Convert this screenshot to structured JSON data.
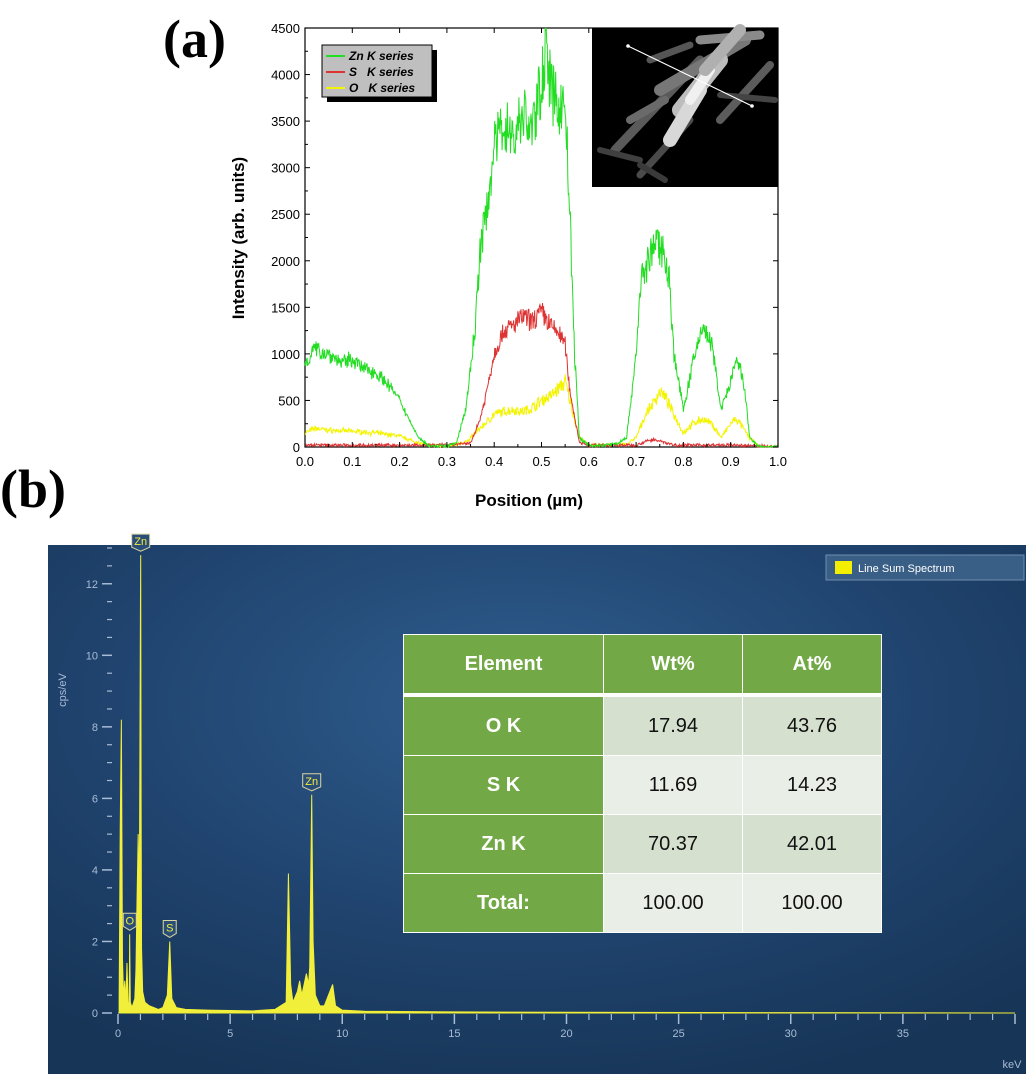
{
  "panel_a_label": "(a)",
  "panel_b_label": "(b)",
  "colors": {
    "zn": "#22dd22",
    "s": "#dd3333",
    "o": "#f4f400",
    "spectrum_bg": "#1f4470",
    "spectrum_line": "#f2ef3a",
    "table_header": "#72a845"
  },
  "chart_data": [
    {
      "type": "line",
      "title": "",
      "xlabel": "Position (µm)",
      "ylabel": "Intensity (arb. units)",
      "xlim": [
        0.0,
        1.0
      ],
      "ylim": [
        0,
        4500
      ],
      "xticks": [
        "0.0",
        "0.1",
        "0.2",
        "0.3",
        "0.4",
        "0.5",
        "0.6",
        "0.7",
        "0.8",
        "0.9",
        "1.0"
      ],
      "yticks": [
        "0",
        "500",
        "1000",
        "1500",
        "2000",
        "2500",
        "3000",
        "3500",
        "4000",
        "4500"
      ],
      "legend_position": "top-left",
      "inset": "grayscale SEM image of nanostructure with scan line",
      "series": [
        {
          "name": "Zn K series",
          "x": [
            0.0,
            0.02,
            0.05,
            0.08,
            0.1,
            0.12,
            0.15,
            0.18,
            0.2,
            0.22,
            0.24,
            0.26,
            0.28,
            0.3,
            0.32,
            0.34,
            0.36,
            0.37,
            0.38,
            0.4,
            0.42,
            0.44,
            0.46,
            0.48,
            0.5,
            0.51,
            0.52,
            0.54,
            0.55,
            0.56,
            0.57,
            0.58,
            0.6,
            0.62,
            0.66,
            0.68,
            0.7,
            0.71,
            0.72,
            0.74,
            0.76,
            0.77,
            0.78,
            0.8,
            0.82,
            0.84,
            0.86,
            0.88,
            0.9,
            0.91,
            0.92,
            0.93,
            0.94,
            0.96,
            1.0
          ],
          "values": [
            900,
            1050,
            1000,
            900,
            950,
            850,
            800,
            650,
            500,
            300,
            100,
            20,
            10,
            10,
            40,
            400,
            1300,
            2100,
            2400,
            3200,
            3500,
            3300,
            3600,
            3400,
            3900,
            4400,
            3800,
            3650,
            3700,
            2500,
            1000,
            100,
            20,
            10,
            40,
            100,
            1000,
            1800,
            1900,
            2200,
            2100,
            1800,
            1000,
            400,
            900,
            1300,
            1100,
            400,
            700,
            900,
            850,
            600,
            100,
            0,
            0
          ]
        },
        {
          "name": "S   K series",
          "x": [
            0.0,
            0.3,
            0.35,
            0.37,
            0.38,
            0.4,
            0.42,
            0.44,
            0.46,
            0.48,
            0.5,
            0.52,
            0.54,
            0.55,
            0.56,
            0.58,
            0.6,
            0.7,
            0.72,
            0.74,
            0.76,
            0.78,
            0.8,
            0.84,
            0.9,
            1.0
          ],
          "values": [
            20,
            20,
            40,
            300,
            500,
            1000,
            1250,
            1300,
            1400,
            1350,
            1450,
            1300,
            1200,
            1100,
            600,
            50,
            20,
            20,
            60,
            80,
            50,
            20,
            20,
            20,
            20,
            0
          ]
        },
        {
          "name": "O   K series",
          "x": [
            0.0,
            0.02,
            0.05,
            0.1,
            0.15,
            0.2,
            0.23,
            0.26,
            0.3,
            0.34,
            0.36,
            0.38,
            0.4,
            0.42,
            0.44,
            0.46,
            0.48,
            0.5,
            0.52,
            0.54,
            0.55,
            0.56,
            0.58,
            0.6,
            0.68,
            0.7,
            0.72,
            0.74,
            0.75,
            0.76,
            0.78,
            0.8,
            0.82,
            0.84,
            0.86,
            0.88,
            0.9,
            0.91,
            0.92,
            0.94,
            0.96,
            1.0
          ],
          "values": [
            150,
            200,
            180,
            170,
            150,
            120,
            60,
            20,
            10,
            50,
            150,
            250,
            350,
            380,
            400,
            380,
            420,
            500,
            550,
            650,
            700,
            500,
            100,
            20,
            30,
            100,
            350,
            500,
            600,
            550,
            350,
            150,
            250,
            300,
            250,
            100,
            250,
            300,
            250,
            100,
            0,
            0
          ]
        }
      ]
    },
    {
      "type": "line",
      "title": "",
      "xlabel": "keV",
      "ylabel": "cps/eV",
      "xlim": [
        0,
        40
      ],
      "ylim": [
        0,
        13
      ],
      "xticks": [
        "0",
        "5",
        "10",
        "15",
        "20",
        "25",
        "30",
        "35"
      ],
      "yticks": [
        "0",
        "2",
        "4",
        "6",
        "8",
        "10",
        "12"
      ],
      "legend_position": "top-right",
      "series": [
        {
          "name": "Line Sum Spectrum",
          "x": [
            0.05,
            0.1,
            0.15,
            0.2,
            0.25,
            0.3,
            0.35,
            0.4,
            0.45,
            0.5,
            0.52,
            0.55,
            0.6,
            0.65,
            0.7,
            0.75,
            0.8,
            0.85,
            0.9,
            0.95,
            1.0,
            1.012,
            1.03,
            1.05,
            1.1,
            1.2,
            1.4,
            1.6,
            1.8,
            2.0,
            2.2,
            2.307,
            2.4,
            2.6,
            3.0,
            4.0,
            5.0,
            6.0,
            7.0,
            7.5,
            7.6,
            7.7,
            7.8,
            8.0,
            8.1,
            8.2,
            8.3,
            8.4,
            8.5,
            8.55,
            8.638,
            8.7,
            8.8,
            9.0,
            9.2,
            9.572,
            9.7,
            10.0,
            11.0,
            15.0,
            20.0,
            30.0,
            40.0
          ],
          "values": [
            0.3,
            5.2,
            8.2,
            1.5,
            0.4,
            0.9,
            0.3,
            1.4,
            0.3,
            0.2,
            2.2,
            0.3,
            0.2,
            0.2,
            0.3,
            0.4,
            1.2,
            3.2,
            5.0,
            3.0,
            11.3,
            12.8,
            6.0,
            1.8,
            0.6,
            0.3,
            0.2,
            0.15,
            0.1,
            0.15,
            0.5,
            2.0,
            0.4,
            0.15,
            0.1,
            0.08,
            0.07,
            0.06,
            0.1,
            0.3,
            3.9,
            0.8,
            0.3,
            0.6,
            0.9,
            0.5,
            0.8,
            1.1,
            0.8,
            1.3,
            6.1,
            2.0,
            0.5,
            0.2,
            0.2,
            0.8,
            0.2,
            0.08,
            0.05,
            0.03,
            0.02,
            0.01,
            0.0
          ]
        }
      ],
      "peak_labels": [
        {
          "label": "Zn",
          "energy": 1.012,
          "height": 12.8
        },
        {
          "label": "O",
          "energy": 0.525,
          "height": 2.2
        },
        {
          "label": "S",
          "energy": 2.307,
          "height": 2.0
        },
        {
          "label": "Zn",
          "energy": 8.638,
          "height": 6.1
        }
      ]
    }
  ],
  "table": {
    "headers": [
      "Element",
      "Wt%",
      "At%"
    ],
    "rows": [
      [
        "O K",
        "17.94",
        "43.76"
      ],
      [
        "S K",
        "11.69",
        "14.23"
      ],
      [
        "Zn K",
        "70.37",
        "42.01"
      ],
      [
        "Total:",
        "100.00",
        "100.00"
      ]
    ]
  }
}
